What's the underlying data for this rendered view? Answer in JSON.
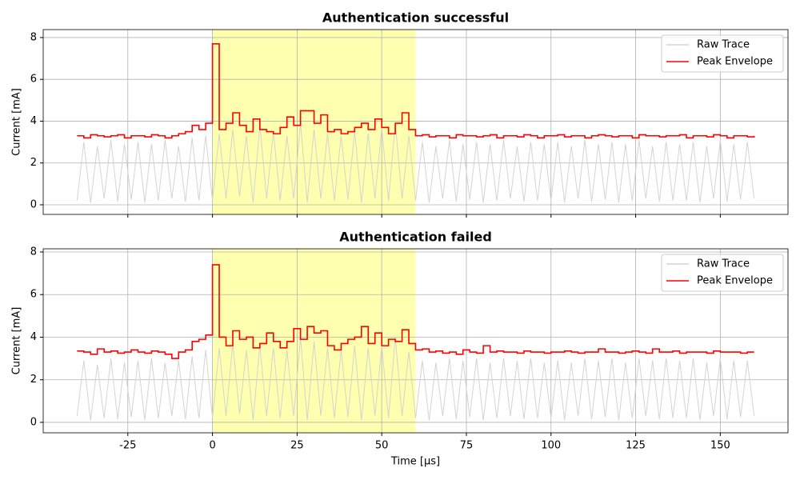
{
  "chart_data": [
    {
      "type": "line",
      "title": "Authentication successful",
      "ylabel": "Current [mA]",
      "xlim": [
        -50,
        170
      ],
      "ylim": [
        -0.46,
        8.38
      ],
      "xticks": [
        -25,
        0,
        25,
        50,
        75,
        100,
        125,
        150
      ],
      "yticks": [
        0,
        2,
        4,
        6,
        8
      ],
      "show_xtick_labels": false,
      "grid": true,
      "legend": "upper right",
      "highlight": [
        0,
        60
      ],
      "highlight_color": "#ffffb0",
      "x": [
        -40,
        -38,
        -36,
        -34,
        -32,
        -30,
        -28,
        -26,
        -24,
        -22,
        -20,
        -18,
        -16,
        -14,
        -12,
        -10,
        -8,
        -6,
        -4,
        -2,
        0,
        2,
        4,
        6,
        8,
        10,
        12,
        14,
        16,
        18,
        20,
        22,
        24,
        26,
        28,
        30,
        32,
        34,
        36,
        38,
        40,
        42,
        44,
        46,
        48,
        50,
        52,
        54,
        56,
        58,
        60,
        62,
        64,
        66,
        68,
        70,
        72,
        74,
        76,
        78,
        80,
        82,
        84,
        86,
        88,
        90,
        92,
        94,
        96,
        98,
        100,
        102,
        104,
        106,
        108,
        110,
        112,
        114,
        116,
        118,
        120,
        122,
        124,
        126,
        128,
        130,
        132,
        134,
        136,
        138,
        140,
        142,
        144,
        146,
        148,
        150,
        152,
        154,
        156,
        158,
        160
      ],
      "series": [
        {
          "name": "Raw Trace",
          "color": "#d3d3d3",
          "values": [
            0.2,
            3.0,
            0.1,
            2.8,
            0.3,
            3.1,
            0.15,
            2.9,
            0.25,
            3.0,
            0.1,
            2.9,
            0.2,
            3.1,
            0.3,
            2.8,
            0.15,
            3.2,
            0.2,
            3.3,
            0.2,
            3.4,
            0.3,
            3.6,
            0.4,
            3.3,
            0.1,
            3.8,
            0.3,
            3.5,
            0.2,
            3.3,
            0.3,
            3.9,
            0.1,
            3.6,
            0.3,
            3.4,
            0.2,
            3.3,
            0.25,
            3.5,
            0.1,
            3.4,
            0.3,
            3.7,
            0.2,
            3.9,
            0.3,
            3.3,
            0.2,
            3.0,
            0.1,
            2.8,
            0.3,
            3.1,
            0.15,
            2.9,
            0.25,
            3.0,
            0.1,
            2.9,
            0.2,
            3.1,
            0.3,
            2.8,
            0.15,
            3.0,
            0.2,
            2.9,
            0.2,
            3.0,
            0.1,
            2.8,
            0.3,
            3.1,
            0.15,
            2.9,
            0.25,
            3.0,
            0.1,
            2.9,
            0.2,
            3.1,
            0.3,
            2.8,
            0.15,
            3.0,
            0.2,
            2.9,
            0.2,
            3.0,
            0.1,
            2.8,
            0.3,
            3.1,
            0.15,
            2.9,
            0.25,
            3.0,
            0.3
          ]
        },
        {
          "name": "Peak Envelope",
          "color": "#ff0000",
          "step": true,
          "values": [
            3.3,
            3.2,
            3.35,
            3.3,
            3.25,
            3.3,
            3.35,
            3.2,
            3.3,
            3.3,
            3.25,
            3.35,
            3.3,
            3.2,
            3.3,
            3.4,
            3.5,
            3.8,
            3.6,
            3.9,
            7.7,
            3.6,
            3.9,
            4.4,
            3.8,
            3.5,
            4.1,
            3.6,
            3.5,
            3.4,
            3.7,
            4.2,
            3.8,
            4.5,
            4.5,
            3.9,
            4.3,
            3.5,
            3.6,
            3.4,
            3.5,
            3.7,
            3.9,
            3.6,
            4.1,
            3.7,
            3.4,
            3.9,
            4.4,
            3.6,
            3.3,
            3.35,
            3.25,
            3.3,
            3.3,
            3.2,
            3.35,
            3.3,
            3.3,
            3.25,
            3.3,
            3.35,
            3.2,
            3.3,
            3.3,
            3.25,
            3.35,
            3.3,
            3.2,
            3.3,
            3.3,
            3.35,
            3.25,
            3.3,
            3.3,
            3.2,
            3.3,
            3.35,
            3.3,
            3.25,
            3.3,
            3.3,
            3.2,
            3.35,
            3.3,
            3.3,
            3.25,
            3.3,
            3.3,
            3.35,
            3.2,
            3.3,
            3.3,
            3.25,
            3.35,
            3.3,
            3.2,
            3.3,
            3.3,
            3.25,
            3.3
          ]
        }
      ]
    },
    {
      "type": "line",
      "title": "Authentication failed",
      "xlabel": "Time [µs]",
      "ylabel": "Current [mA]",
      "xlim": [
        -50,
        170
      ],
      "ylim": [
        -0.49,
        8.15
      ],
      "xticks": [
        -25,
        0,
        25,
        50,
        75,
        100,
        125,
        150
      ],
      "yticks": [
        0,
        2,
        4,
        6,
        8
      ],
      "show_xtick_labels": true,
      "grid": true,
      "legend": "upper right",
      "highlight": [
        0,
        60
      ],
      "highlight_color": "#ffffb0",
      "x": [
        -40,
        -38,
        -36,
        -34,
        -32,
        -30,
        -28,
        -26,
        -24,
        -22,
        -20,
        -18,
        -16,
        -14,
        -12,
        -10,
        -8,
        -6,
        -4,
        -2,
        0,
        2,
        4,
        6,
        8,
        10,
        12,
        14,
        16,
        18,
        20,
        22,
        24,
        26,
        28,
        30,
        32,
        34,
        36,
        38,
        40,
        42,
        44,
        46,
        48,
        50,
        52,
        54,
        56,
        58,
        60,
        62,
        64,
        66,
        68,
        70,
        72,
        74,
        76,
        78,
        80,
        82,
        84,
        86,
        88,
        90,
        92,
        94,
        96,
        98,
        100,
        102,
        104,
        106,
        108,
        110,
        112,
        114,
        116,
        118,
        120,
        122,
        124,
        126,
        128,
        130,
        132,
        134,
        136,
        138,
        140,
        142,
        144,
        146,
        148,
        150,
        152,
        154,
        156,
        158,
        160
      ],
      "series": [
        {
          "name": "Raw Trace",
          "color": "#d3d3d3",
          "values": [
            0.3,
            2.9,
            0.1,
            2.7,
            0.2,
            3.0,
            0.15,
            2.8,
            0.25,
            2.9,
            0.1,
            3.0,
            0.2,
            2.8,
            0.3,
            2.9,
            0.15,
            3.1,
            0.2,
            3.4,
            0.2,
            3.5,
            0.3,
            3.7,
            0.4,
            3.4,
            0.1,
            3.6,
            0.3,
            3.5,
            0.2,
            3.4,
            0.3,
            4.0,
            0.1,
            3.8,
            0.3,
            3.5,
            0.2,
            3.4,
            0.25,
            3.6,
            0.1,
            3.5,
            0.3,
            3.6,
            0.2,
            4.0,
            0.3,
            3.3,
            0.2,
            2.9,
            0.1,
            2.8,
            0.3,
            3.0,
            0.15,
            2.9,
            0.25,
            3.0,
            0.1,
            2.8,
            0.2,
            3.0,
            0.3,
            2.9,
            0.15,
            3.0,
            0.2,
            2.8,
            0.2,
            2.9,
            0.1,
            2.8,
            0.3,
            3.0,
            0.15,
            2.9,
            0.25,
            3.0,
            0.1,
            2.8,
            0.2,
            3.0,
            0.3,
            2.9,
            0.15,
            3.0,
            0.2,
            2.9,
            0.2,
            3.0,
            0.1,
            2.8,
            0.3,
            3.0,
            0.15,
            2.9,
            0.25,
            2.9,
            0.3
          ]
        },
        {
          "name": "Peak Envelope",
          "color": "#ff0000",
          "step": true,
          "values": [
            3.35,
            3.3,
            3.2,
            3.45,
            3.3,
            3.35,
            3.25,
            3.3,
            3.4,
            3.3,
            3.25,
            3.35,
            3.3,
            3.2,
            3.0,
            3.3,
            3.4,
            3.8,
            3.9,
            4.1,
            7.4,
            4.0,
            3.6,
            4.3,
            3.9,
            4.0,
            3.5,
            3.7,
            4.2,
            3.8,
            3.5,
            3.8,
            4.4,
            3.9,
            4.5,
            4.2,
            4.3,
            3.6,
            3.4,
            3.7,
            3.9,
            4.0,
            4.5,
            3.7,
            4.2,
            3.6,
            3.9,
            3.8,
            4.35,
            3.7,
            3.4,
            3.45,
            3.3,
            3.35,
            3.25,
            3.3,
            3.2,
            3.4,
            3.3,
            3.25,
            3.6,
            3.3,
            3.35,
            3.3,
            3.3,
            3.25,
            3.35,
            3.3,
            3.3,
            3.25,
            3.3,
            3.3,
            3.35,
            3.3,
            3.25,
            3.3,
            3.3,
            3.45,
            3.3,
            3.3,
            3.25,
            3.3,
            3.35,
            3.3,
            3.25,
            3.45,
            3.3,
            3.3,
            3.35,
            3.25,
            3.3,
            3.3,
            3.3,
            3.25,
            3.35,
            3.3,
            3.3,
            3.3,
            3.25,
            3.3,
            3.3
          ]
        }
      ]
    }
  ]
}
